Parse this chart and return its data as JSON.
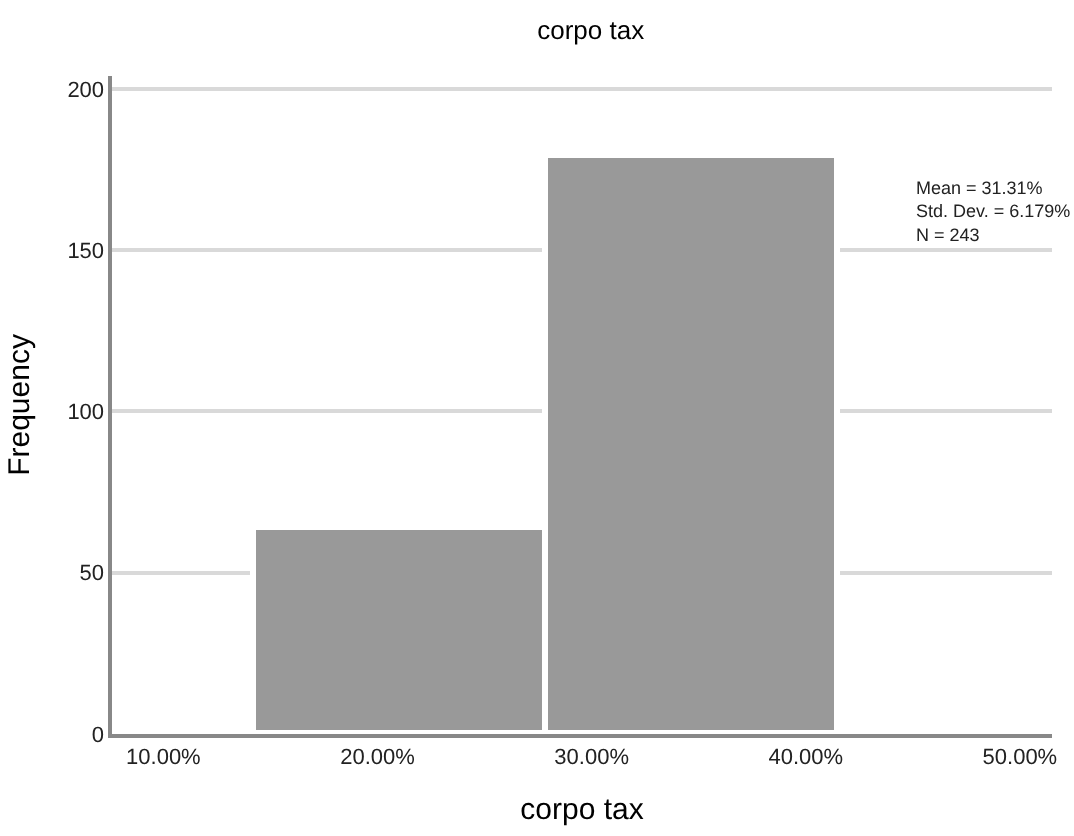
{
  "chart_data": {
    "type": "histogram",
    "title": "corpo tax",
    "xlabel": "corpo tax",
    "ylabel": "Frequency",
    "bins": [
      14.2,
      27.9,
      41.5
    ],
    "values": [
      64,
      179
    ],
    "color": "#999999",
    "xlim": [
      7.6,
      51.5
    ],
    "xticks": [
      {
        "value": 10,
        "label": "10.00%"
      },
      {
        "value": 20,
        "label": "20.00%"
      },
      {
        "value": 30,
        "label": "30.00%"
      },
      {
        "value": 40,
        "label": "40.00%"
      },
      {
        "value": 50,
        "label": "50.00%"
      }
    ],
    "ylim": [
      0,
      204
    ],
    "yticks": [
      0,
      50,
      100,
      150,
      200
    ],
    "grid": "y",
    "annotations": [
      "Mean = 31.31%\nStd. Dev. = 6.179%\nN = 243"
    ]
  }
}
